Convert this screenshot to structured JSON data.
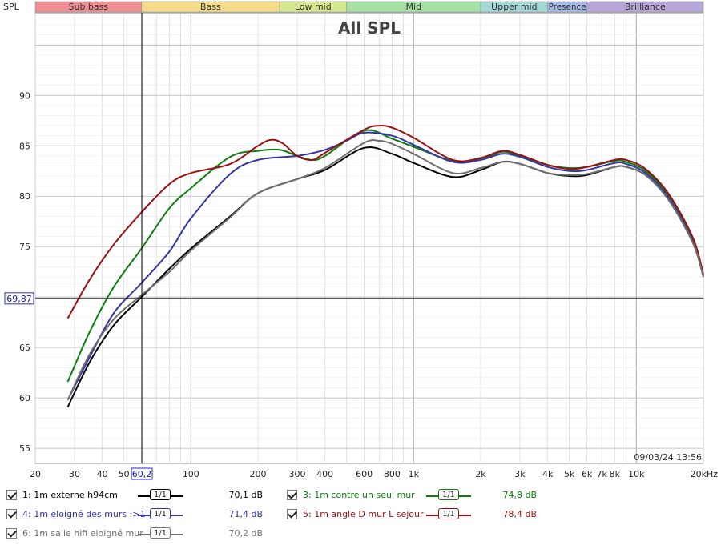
{
  "chart_data": {
    "type": "line",
    "title": "All SPL",
    "ylabel": "SPL",
    "xlabel": "",
    "x_scale": "log",
    "xlim": [
      20,
      20000
    ],
    "ylim": [
      53.5,
      98.2
    ],
    "grid": true,
    "x_ticks": [
      {
        "value": 20,
        "label": "20"
      },
      {
        "value": 30,
        "label": "30"
      },
      {
        "value": 40,
        "label": "40"
      },
      {
        "value": 50,
        "label": "50"
      },
      {
        "value": 100,
        "label": "100"
      },
      {
        "value": 200,
        "label": "200"
      },
      {
        "value": 300,
        "label": "300"
      },
      {
        "value": 400,
        "label": "400"
      },
      {
        "value": 600,
        "label": "600"
      },
      {
        "value": 800,
        "label": "800"
      },
      {
        "value": 1000,
        "label": "1k"
      },
      {
        "value": 2000,
        "label": "2k"
      },
      {
        "value": 3000,
        "label": "3k"
      },
      {
        "value": 4000,
        "label": "4k"
      },
      {
        "value": 5000,
        "label": "5k"
      },
      {
        "value": 6000,
        "label": "6k"
      },
      {
        "value": 7000,
        "label": "7k"
      },
      {
        "value": 8000,
        "label": "8k"
      },
      {
        "value": 10000,
        "label": "10k"
      },
      {
        "value": 20000,
        "label": "20kHz"
      }
    ],
    "y_ticks": [
      55,
      60,
      65,
      70,
      75,
      80,
      85,
      90
    ],
    "bands": [
      {
        "name": "Sub bass",
        "from": 20,
        "to": 60,
        "color": "#ef8f95"
      },
      {
        "name": "Bass",
        "from": 60,
        "to": 250,
        "color": "#f5dc8a"
      },
      {
        "name": "Low mid",
        "from": 250,
        "to": 500,
        "color": "#d6e88c"
      },
      {
        "name": "Mid",
        "from": 500,
        "to": 2000,
        "color": "#a6e2a6"
      },
      {
        "name": "Upper mid",
        "from": 2000,
        "to": 4000,
        "color": "#a6d8d8"
      },
      {
        "name": "Presence",
        "from": 4000,
        "to": 6000,
        "color": "#a6b8e8"
      },
      {
        "name": "Brilliance",
        "from": 6000,
        "to": 20000,
        "color": "#b9a6d8"
      }
    ],
    "cursor": {
      "x": 60.2,
      "x_label": "60,2",
      "y": 69.87,
      "y_label": "69,87"
    },
    "timestamp": "09/03/24 13:56",
    "series": [
      {
        "name": "1: 1m externe h94cm",
        "color": "#000000",
        "points": [
          [
            28,
            59.1
          ],
          [
            35,
            63.5
          ],
          [
            45,
            67.2
          ],
          [
            60,
            70.0
          ],
          [
            80,
            72.8
          ],
          [
            100,
            74.8
          ],
          [
            150,
            78.0
          ],
          [
            200,
            80.3
          ],
          [
            300,
            81.7
          ],
          [
            400,
            82.6
          ],
          [
            600,
            84.8
          ],
          [
            800,
            84.2
          ],
          [
            1000,
            83.3
          ],
          [
            1500,
            81.9
          ],
          [
            2000,
            82.6
          ],
          [
            2500,
            83.4
          ],
          [
            3000,
            83.2
          ],
          [
            4000,
            82.3
          ],
          [
            5000,
            82.0
          ],
          [
            6000,
            82.1
          ],
          [
            8000,
            82.9
          ],
          [
            9000,
            82.9
          ],
          [
            11000,
            82.1
          ],
          [
            14000,
            79.6
          ],
          [
            18000,
            75.3
          ],
          [
            20000,
            72.0
          ]
        ]
      },
      {
        "name": "3: 1m contre un seul mur",
        "color": "#0d7d0d",
        "points": [
          [
            28,
            61.6
          ],
          [
            35,
            66.5
          ],
          [
            45,
            71.0
          ],
          [
            60,
            74.8
          ],
          [
            80,
            78.8
          ],
          [
            100,
            80.8
          ],
          [
            150,
            83.9
          ],
          [
            200,
            84.5
          ],
          [
            250,
            84.6
          ],
          [
            300,
            84.0
          ],
          [
            350,
            83.6
          ],
          [
            400,
            84.0
          ],
          [
            600,
            86.5
          ],
          [
            800,
            85.7
          ],
          [
            1000,
            84.9
          ],
          [
            1500,
            83.5
          ],
          [
            2000,
            83.7
          ],
          [
            2500,
            84.4
          ],
          [
            3000,
            84.0
          ],
          [
            4000,
            83.1
          ],
          [
            5000,
            82.8
          ],
          [
            6000,
            82.9
          ],
          [
            8000,
            83.5
          ],
          [
            9000,
            83.4
          ],
          [
            11000,
            82.5
          ],
          [
            14000,
            80.0
          ],
          [
            18000,
            75.6
          ],
          [
            20000,
            72.2
          ]
        ]
      },
      {
        "name": "4: 1m eloigné des murs :>1",
        "color": "#3535a6",
        "points": [
          [
            28,
            59.8
          ],
          [
            35,
            64.0
          ],
          [
            45,
            68.4
          ],
          [
            60,
            71.4
          ],
          [
            80,
            74.5
          ],
          [
            100,
            77.8
          ],
          [
            150,
            82.2
          ],
          [
            200,
            83.6
          ],
          [
            300,
            84.0
          ],
          [
            400,
            84.6
          ],
          [
            500,
            85.5
          ],
          [
            600,
            86.3
          ],
          [
            800,
            86.0
          ],
          [
            1000,
            85.1
          ],
          [
            1500,
            83.4
          ],
          [
            2000,
            83.6
          ],
          [
            2500,
            84.2
          ],
          [
            3000,
            83.9
          ],
          [
            4000,
            82.9
          ],
          [
            5000,
            82.5
          ],
          [
            6000,
            82.6
          ],
          [
            8000,
            83.3
          ],
          [
            9000,
            83.2
          ],
          [
            11000,
            82.3
          ],
          [
            14000,
            79.8
          ],
          [
            18000,
            75.4
          ],
          [
            20000,
            72.0
          ]
        ]
      },
      {
        "name": "5: 1m angle D mur L sejour",
        "color": "#9a1010",
        "points": [
          [
            28,
            67.9
          ],
          [
            35,
            71.7
          ],
          [
            45,
            75.2
          ],
          [
            60,
            78.4
          ],
          [
            80,
            81.2
          ],
          [
            100,
            82.3
          ],
          [
            150,
            83.2
          ],
          [
            200,
            85.0
          ],
          [
            230,
            85.6
          ],
          [
            260,
            85.2
          ],
          [
            300,
            84.0
          ],
          [
            350,
            83.6
          ],
          [
            400,
            84.3
          ],
          [
            600,
            86.6
          ],
          [
            700,
            87.0
          ],
          [
            800,
            86.8
          ],
          [
            1000,
            85.8
          ],
          [
            1500,
            83.6
          ],
          [
            2000,
            83.8
          ],
          [
            2500,
            84.5
          ],
          [
            3000,
            84.1
          ],
          [
            4000,
            83.1
          ],
          [
            5000,
            82.7
          ],
          [
            6000,
            82.9
          ],
          [
            8000,
            83.6
          ],
          [
            9000,
            83.6
          ],
          [
            11000,
            82.7
          ],
          [
            14000,
            80.2
          ],
          [
            18000,
            75.8
          ],
          [
            20000,
            72.2
          ]
        ]
      },
      {
        "name": "6: 1m salle hifi eloigné mur",
        "color": "#707070",
        "points": [
          [
            28,
            59.8
          ],
          [
            35,
            64.3
          ],
          [
            45,
            67.8
          ],
          [
            60,
            70.2
          ],
          [
            80,
            72.5
          ],
          [
            100,
            74.6
          ],
          [
            150,
            77.9
          ],
          [
            200,
            80.3
          ],
          [
            300,
            81.7
          ],
          [
            400,
            82.8
          ],
          [
            600,
            85.3
          ],
          [
            700,
            85.5
          ],
          [
            800,
            85.2
          ],
          [
            1000,
            84.2
          ],
          [
            1500,
            82.3
          ],
          [
            2000,
            82.8
          ],
          [
            2500,
            83.4
          ],
          [
            3000,
            83.2
          ],
          [
            4000,
            82.3
          ],
          [
            5000,
            82.1
          ],
          [
            6000,
            82.2
          ],
          [
            8000,
            82.9
          ],
          [
            9000,
            82.9
          ],
          [
            11000,
            82.1
          ],
          [
            14000,
            79.6
          ],
          [
            18000,
            75.3
          ],
          [
            20000,
            72.0
          ]
        ]
      }
    ]
  },
  "legend": [
    {
      "label": "1: 1m externe h94cm",
      "smoothing": "1/1",
      "value": "70,1 dB",
      "color": "#000000"
    },
    {
      "label": "3: 1m contre un seul mur",
      "smoothing": "1/1",
      "value": "74,8 dB",
      "color": "#0d7d0d"
    },
    {
      "label": "4: 1m eloigné des murs :>1",
      "smoothing": "1/1",
      "value": "71,4 dB",
      "color": "#3535a6"
    },
    {
      "label": "5: 1m angle D mur L sejour",
      "smoothing": "1/1",
      "value": "78,4 dB",
      "color": "#9a1010"
    },
    {
      "label": "6: 1m salle hifi eloigné mur",
      "smoothing": "1/1",
      "value": "70,2 dB",
      "color": "#707070"
    }
  ]
}
